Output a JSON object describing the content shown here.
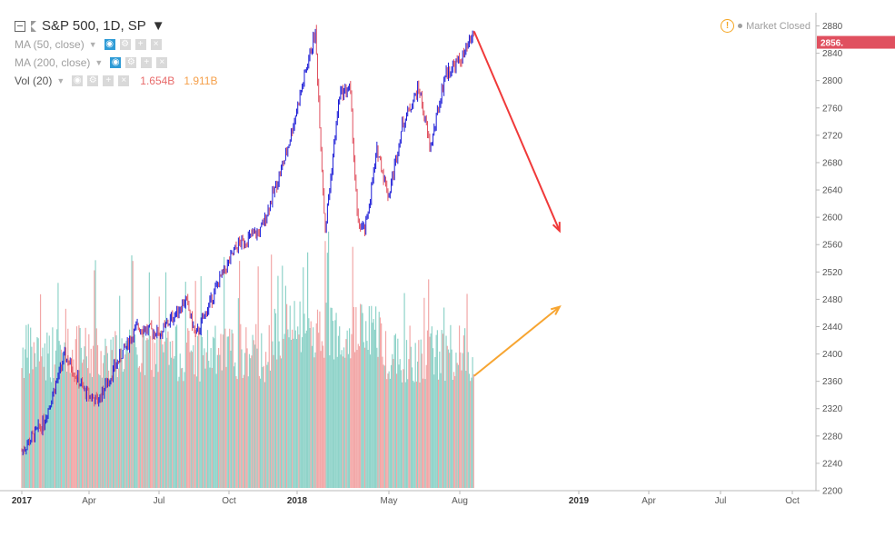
{
  "header": {
    "title": "S&P 500, 1D, SP",
    "market_status": "Market Closed",
    "legend": [
      {
        "label": "MA (50, close)"
      },
      {
        "label": "MA (200, close)"
      },
      {
        "label": "Vol (20)",
        "value1": "1.654B",
        "value2": "1.911B"
      }
    ]
  },
  "colors": {
    "up_candle": "#1a1ad6",
    "down_candle": "#e0505f",
    "vol_up": "#8fd3c9",
    "vol_down": "#f2a7a7",
    "price_tag": "#e0505f",
    "red_arrow": "#f03a3a",
    "orange_arrow": "#f7a531"
  },
  "chart_data": {
    "type": "candlestick",
    "symbol": "S&P 500",
    "interval": "1D",
    "last_price_label": "2856.",
    "y_ticks": [
      "2200",
      "2240",
      "2280",
      "2320",
      "2360",
      "2400",
      "2440",
      "2480",
      "2520",
      "2560",
      "2600",
      "2640",
      "2680",
      "2720",
      "2760",
      "2800",
      "2840",
      "2880"
    ],
    "ylim": [
      2200,
      2890
    ],
    "x_ticks": [
      {
        "label": "2017",
        "bold": true
      },
      {
        "label": "Apr",
        "bold": false
      },
      {
        "label": "Jul",
        "bold": false
      },
      {
        "label": "Oct",
        "bold": false
      },
      {
        "label": "2018",
        "bold": true
      },
      {
        "label": "May",
        "bold": false
      },
      {
        "label": "Aug",
        "bold": false
      },
      {
        "label": "2019",
        "bold": true
      },
      {
        "label": "Apr",
        "bold": false
      },
      {
        "label": "Jul",
        "bold": false
      },
      {
        "label": "Oct",
        "bold": false
      }
    ],
    "price_path": [
      {
        "date": "2017-01-03",
        "close": 2258
      },
      {
        "date": "2017-02-01",
        "close": 2300
      },
      {
        "date": "2017-03-01",
        "close": 2398
      },
      {
        "date": "2017-03-27",
        "close": 2345
      },
      {
        "date": "2017-04-13",
        "close": 2330
      },
      {
        "date": "2017-05-15",
        "close": 2400
      },
      {
        "date": "2017-06-05",
        "close": 2440
      },
      {
        "date": "2017-07-05",
        "close": 2430
      },
      {
        "date": "2017-08-08",
        "close": 2480
      },
      {
        "date": "2017-08-21",
        "close": 2425
      },
      {
        "date": "2017-09-20",
        "close": 2505
      },
      {
        "date": "2017-10-16",
        "close": 2560
      },
      {
        "date": "2017-11-15",
        "close": 2580
      },
      {
        "date": "2017-12-18",
        "close": 2690
      },
      {
        "date": "2018-01-26",
        "close": 2872
      },
      {
        "date": "2018-02-08",
        "close": 2580
      },
      {
        "date": "2018-02-27",
        "close": 2780
      },
      {
        "date": "2018-03-13",
        "close": 2790
      },
      {
        "date": "2018-03-23",
        "close": 2590
      },
      {
        "date": "2018-04-02",
        "close": 2580
      },
      {
        "date": "2018-04-18",
        "close": 2700
      },
      {
        "date": "2018-05-03",
        "close": 2630
      },
      {
        "date": "2018-05-21",
        "close": 2735
      },
      {
        "date": "2018-06-12",
        "close": 2790
      },
      {
        "date": "2018-06-27",
        "close": 2700
      },
      {
        "date": "2018-07-17",
        "close": 2810
      },
      {
        "date": "2018-08-10",
        "close": 2835
      },
      {
        "date": "2018-08-24",
        "close": 2872
      }
    ],
    "volume_ylim": [
      0,
      4
    ],
    "annotations": [
      {
        "type": "arrow",
        "color": "red",
        "from": {
          "date": "2018-08-24",
          "value": 2872
        },
        "to": {
          "date": "2018-12-15",
          "value": 2580
        }
      },
      {
        "type": "arrow",
        "color": "orange",
        "pane": "volume",
        "from": {
          "date": "2018-08-24",
          "volume_b": 1.7
        },
        "to": {
          "date": "2018-12-15",
          "volume_b": 2.75
        }
      }
    ]
  }
}
